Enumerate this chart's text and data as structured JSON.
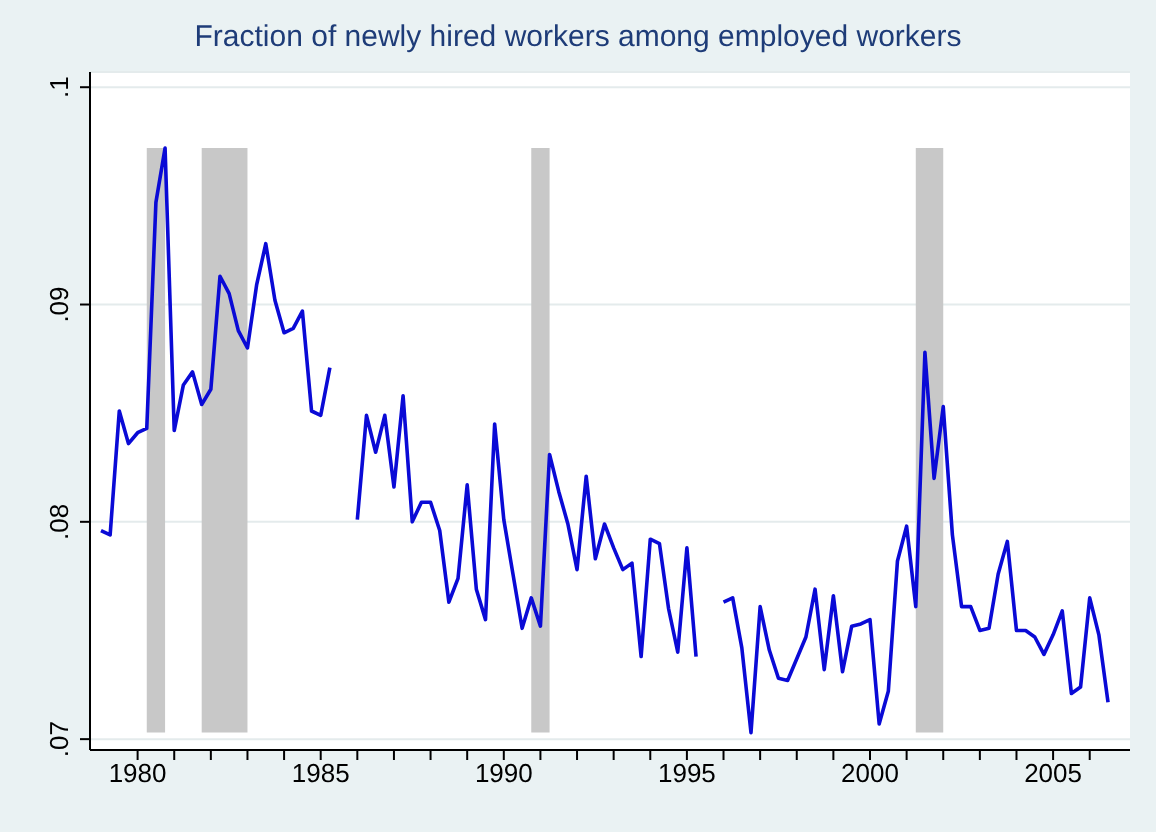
{
  "chart_data": {
    "type": "line",
    "title": "Fraction of newly hired workers among employed workers",
    "x": [
      1979,
      1979.25,
      1979.5,
      1979.75,
      1980,
      1980.25,
      1980.5,
      1980.75,
      1981,
      1981.25,
      1981.5,
      1981.75,
      1982,
      1982.25,
      1982.5,
      1982.75,
      1983,
      1983.25,
      1983.5,
      1983.75,
      1984,
      1984.25,
      1984.5,
      1984.75,
      1985,
      1985.25,
      1985.5,
      1985.75,
      1986,
      1986.25,
      1986.5,
      1986.75,
      1987,
      1987.25,
      1987.5,
      1987.75,
      1988,
      1988.25,
      1988.5,
      1988.75,
      1989,
      1989.25,
      1989.5,
      1989.75,
      1990,
      1990.25,
      1990.5,
      1990.75,
      1991,
      1991.25,
      1991.5,
      1991.75,
      1992,
      1992.25,
      1992.5,
      1992.75,
      1993,
      1993.25,
      1993.5,
      1993.75,
      1994,
      1994.25,
      1994.5,
      1994.75,
      1995,
      1995.25,
      1995.5,
      1995.75,
      1996,
      1996.25,
      1996.5,
      1996.75,
      1997,
      1997.25,
      1997.5,
      1997.75,
      1998,
      1998.25,
      1998.5,
      1998.75,
      1999,
      1999.25,
      1999.5,
      1999.75,
      2000,
      2000.25,
      2000.5,
      2000.75,
      2001,
      2001.25,
      2001.5,
      2001.75,
      2002,
      2002.25,
      2002.5,
      2002.75,
      2003,
      2003.25,
      2003.5,
      2003.75,
      2004,
      2004.25,
      2004.5,
      2004.75,
      2005,
      2005.25,
      2005.5,
      2005.75,
      2006,
      2006.25,
      2006.5
    ],
    "series": [
      {
        "color": "#0a0ad6",
        "values": [
          0.0796,
          0.0794,
          0.0851,
          0.0836,
          0.0841,
          0.0843,
          0.0947,
          0.0972,
          0.0842,
          0.0863,
          0.0869,
          0.0854,
          0.0861,
          0.0913,
          0.0905,
          0.0888,
          0.088,
          0.0909,
          0.0928,
          0.0902,
          0.0887,
          0.0889,
          0.0897,
          0.0851,
          0.0849,
          0.0871,
          null,
          null,
          0.0801,
          0.0849,
          0.0832,
          0.0849,
          0.0816,
          0.0858,
          0.08,
          0.0809,
          0.0809,
          0.0796,
          0.0763,
          0.0774,
          0.0817,
          0.0769,
          0.0755,
          0.0845,
          0.0801,
          0.0776,
          0.0751,
          0.0765,
          0.0752,
          0.0831,
          0.0814,
          0.0799,
          0.0778,
          0.0821,
          0.0783,
          0.0799,
          0.0788,
          0.0778,
          0.0781,
          0.0738,
          0.0792,
          0.079,
          0.076,
          0.074,
          0.0788,
          0.0738,
          null,
          null,
          0.0763,
          0.0765,
          0.0742,
          0.0703,
          0.0761,
          0.0741,
          0.0728,
          0.0727,
          0.0737,
          0.0747,
          0.0769,
          0.0732,
          0.0766,
          0.0731,
          0.0752,
          0.0753,
          0.0755,
          0.0707,
          0.0722,
          0.0782,
          0.0798,
          0.0761,
          0.0878,
          0.082,
          0.0853,
          0.0794,
          0.0761,
          0.0761,
          0.075,
          0.0751,
          0.0776,
          0.0791,
          0.075,
          0.075,
          0.0747,
          0.0739,
          0.0748,
          0.0759,
          0.0721,
          0.0724,
          0.0765,
          0.0748,
          0.0717
        ]
      }
    ],
    "bands": [
      {
        "axis": "x",
        "from": 1980.25,
        "to": 1980.75,
        "color": "#c8c8c8"
      },
      {
        "axis": "x",
        "from": 1981.75,
        "to": 1983,
        "color": "#c8c8c8"
      },
      {
        "axis": "x",
        "from": 1990.75,
        "to": 1991.25,
        "color": "#c8c8c8"
      },
      {
        "axis": "x",
        "from": 2001.25,
        "to": 2002,
        "color": "#c8c8c8"
      }
    ],
    "xlim": [
      1978.7,
      2007.1
    ],
    "xticks": [
      1980,
      {
        "value": 1981,
        "label": null
      },
      {
        "value": 1982,
        "label": null
      },
      {
        "value": 1983,
        "label": null
      },
      {
        "value": 1984,
        "label": null
      },
      1985,
      {
        "value": 1986,
        "label": null
      },
      {
        "value": 1987,
        "label": null
      },
      {
        "value": 1988,
        "label": null
      },
      {
        "value": 1989,
        "label": null
      },
      1990,
      {
        "value": 1991,
        "label": null
      },
      {
        "value": 1992,
        "label": null
      },
      {
        "value": 1993,
        "label": null
      },
      {
        "value": 1994,
        "label": null
      },
      1995,
      {
        "value": 1996,
        "label": null
      },
      {
        "value": 1997,
        "label": null
      },
      {
        "value": 1998,
        "label": null
      },
      {
        "value": 1999,
        "label": null
      },
      2000,
      {
        "value": 2001,
        "label": null
      },
      {
        "value": 2002,
        "label": null
      },
      {
        "value": 2003,
        "label": null
      },
      {
        "value": 2004,
        "label": null
      },
      2005,
      {
        "value": 2006,
        "label": null
      }
    ],
    "ylim": [
      0.0695,
      0.1007
    ],
    "yticks": [
      {
        "value": 0.07,
        "label": ".07"
      },
      {
        "value": 0.08,
        "label": ".08"
      },
      {
        "value": 0.09,
        "label": ".09"
      },
      {
        "value": 0.1,
        "label": ".1"
      }
    ],
    "grid": "y",
    "legend": false,
    "marker": "none",
    "line_style": "solid"
  }
}
